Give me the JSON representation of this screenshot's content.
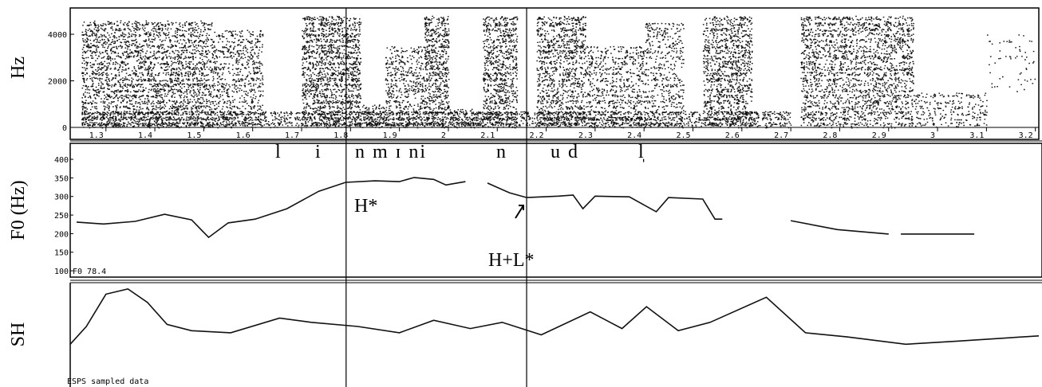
{
  "chart_data": [
    {
      "type": "spectrogram",
      "ylabel": "Hz",
      "xlim": [
        1.227,
        3.207
      ],
      "ylim": [
        0,
        5130
      ],
      "yticks": [
        0,
        2000,
        4000
      ],
      "xticks": [
        1.3,
        1.4,
        1.5,
        1.6,
        1.7,
        1.8,
        1.9,
        2,
        2.1,
        2.2,
        2.3,
        2.4,
        2.5,
        2.6,
        2.7,
        2.8,
        2.9,
        3,
        3.1,
        3.2
      ],
      "cursors": [
        1.791,
        2.16
      ]
    },
    {
      "type": "line",
      "ylabel": "F0 (Hz)",
      "xlim": [
        1.227,
        3.207
      ],
      "ylim": [
        83,
        443
      ],
      "yticks": [
        100,
        150,
        200,
        250,
        300,
        350,
        400
      ],
      "corner_label": "F0  78.4",
      "segments": [
        "l",
        "i",
        "n m ɪ ni",
        "n",
        "u d",
        "l̩"
      ],
      "tones": [
        "H*",
        "H+L*"
      ],
      "x": [
        1.24,
        1.295,
        1.36,
        1.42,
        1.475,
        1.51,
        1.55,
        1.605,
        1.67,
        1.735,
        1.79,
        1.85,
        1.9,
        1.93,
        1.97,
        1.995,
        2.035,
        null,
        2.08,
        2.125,
        2.16,
        2.225,
        2.255,
        2.275,
        2.3,
        2.37,
        2.425,
        2.45,
        2.52,
        2.545,
        2.56,
        null,
        2.7,
        2.795,
        2.9,
        null,
        2.925,
        3.075
      ],
      "series": [
        {
          "color": "#111111",
          "values": [
            231,
            226,
            233,
            252,
            237,
            190,
            229,
            239,
            267,
            314,
            338,
            342,
            340,
            351,
            346,
            331,
            340,
            null,
            336,
            310,
            297,
            301,
            304,
            267,
            301,
            299,
            259,
            297,
            293,
            239,
            239,
            null,
            235,
            211,
            199,
            null,
            199,
            199
          ]
        }
      ]
    },
    {
      "type": "line",
      "ylabel": "SH",
      "xlim": [
        1.227,
        3.207
      ],
      "ylim": [
        0,
        100
      ],
      "footer": "ESPS sampled data",
      "x": [
        1.227,
        1.26,
        1.3,
        1.345,
        1.385,
        1.425,
        1.475,
        1.555,
        1.655,
        1.72,
        1.815,
        1.9,
        1.97,
        2.045,
        2.11,
        2.19,
        2.29,
        2.355,
        2.405,
        2.47,
        2.535,
        2.65,
        2.73,
        2.815,
        2.935,
        3.04,
        3.207
      ],
      "series": [
        {
          "color": "#111111",
          "values": [
            41,
            58,
            89,
            94,
            81,
            60,
            54,
            52,
            66,
            62,
            58,
            52,
            64,
            56,
            62,
            50,
            72,
            56,
            77,
            54,
            62,
            86,
            52,
            48,
            41,
            44,
            49
          ]
        }
      ]
    }
  ]
}
